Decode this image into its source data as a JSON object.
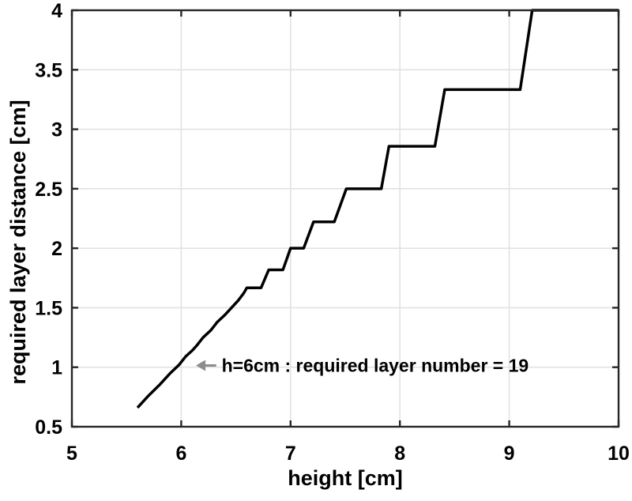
{
  "figure": {
    "background": "#ffffff",
    "axis_color": "#262626",
    "grid_color": "#e2e2e2",
    "curve_color": "#000000",
    "annotation_arrow_color": "#8c8c8c",
    "annotation_text_color": "#000000"
  },
  "chart_data": {
    "type": "line",
    "title": "",
    "xlabel": "height [cm]",
    "ylabel": "required layer distance [cm]",
    "xlim": [
      5,
      10
    ],
    "ylim": [
      0.5,
      4
    ],
    "xticks": [
      5,
      6,
      7,
      8,
      9,
      10
    ],
    "xtick_labels": [
      "5",
      "6",
      "7",
      "8",
      "9",
      "10"
    ],
    "yticks": [
      0.5,
      1,
      1.5,
      2,
      2.5,
      3,
      3.5,
      4
    ],
    "ytick_labels": [
      "0.5",
      "1",
      "1.5",
      "2",
      "2.5",
      "3",
      "3.5",
      "4"
    ],
    "grid": true,
    "legend": null,
    "series": [
      {
        "name": "required layer distance",
        "color": "#000000",
        "points": [
          [
            5.6,
            0.66
          ],
          [
            5.7,
            0.76
          ],
          [
            5.8,
            0.85
          ],
          [
            5.9,
            0.95
          ],
          [
            5.98,
            1.02
          ],
          [
            6.04,
            1.09
          ],
          [
            6.1,
            1.14
          ],
          [
            6.14,
            1.18
          ],
          [
            6.2,
            1.25
          ],
          [
            6.27,
            1.31
          ],
          [
            6.33,
            1.38
          ],
          [
            6.4,
            1.44
          ],
          [
            6.46,
            1.5
          ],
          [
            6.52,
            1.56
          ],
          [
            6.57,
            1.62
          ],
          [
            6.6,
            1.667
          ],
          [
            6.73,
            1.667
          ],
          [
            6.8,
            1.818
          ],
          [
            6.93,
            1.818
          ],
          [
            7.0,
            2.0
          ],
          [
            7.12,
            2.0
          ],
          [
            7.21,
            2.222
          ],
          [
            7.4,
            2.222
          ],
          [
            7.51,
            2.5
          ],
          [
            7.83,
            2.5
          ],
          [
            7.9,
            2.857
          ],
          [
            8.32,
            2.857
          ],
          [
            8.41,
            3.333
          ],
          [
            9.1,
            3.333
          ],
          [
            9.21,
            4.0
          ],
          [
            10.0,
            4.0
          ]
        ]
      }
    ],
    "annotations": [
      {
        "icon": "left-arrow",
        "arrow_symbol": "←",
        "text": "h=6cm : required layer number = 19",
        "arrow_tip_xy": [
          6.135,
          1.015
        ],
        "arrow_tail_xy": [
          6.32,
          1.015
        ],
        "text_xy": [
          6.37,
          1.015
        ]
      }
    ]
  }
}
